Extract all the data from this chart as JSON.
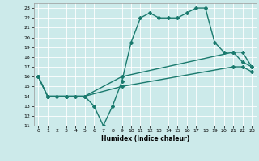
{
  "xlabel": "Humidex (Indice chaleur)",
  "xlim": [
    -0.5,
    23.5
  ],
  "ylim": [
    11,
    23.5
  ],
  "xticks": [
    0,
    1,
    2,
    3,
    4,
    5,
    6,
    7,
    8,
    9,
    10,
    11,
    12,
    13,
    14,
    15,
    16,
    17,
    18,
    19,
    20,
    21,
    22,
    23
  ],
  "yticks": [
    11,
    12,
    13,
    14,
    15,
    16,
    17,
    18,
    19,
    20,
    21,
    22,
    23
  ],
  "bg_color": "#cceaea",
  "grid_color": "#b0d8d8",
  "line_color": "#1a7a6e",
  "line1_x": [
    0,
    1,
    2,
    3,
    4,
    5,
    6,
    7,
    8,
    9,
    10,
    11,
    12,
    13,
    14,
    15,
    16,
    17,
    18,
    19,
    20,
    21,
    22,
    23
  ],
  "line1_y": [
    16,
    14,
    14,
    14,
    14,
    14,
    13,
    11,
    13,
    15.5,
    19.5,
    22,
    22.5,
    22,
    22,
    22,
    22.5,
    23,
    23,
    19.5,
    18.5,
    18.5,
    17.5,
    17
  ],
  "line2_x": [
    0,
    1,
    3,
    5,
    9,
    21,
    22,
    23
  ],
  "line2_y": [
    16,
    14,
    14,
    14,
    16,
    18.5,
    18.5,
    17
  ],
  "line3_x": [
    0,
    1,
    3,
    5,
    9,
    21,
    22,
    23
  ],
  "line3_y": [
    16,
    14,
    14,
    14,
    15,
    17,
    17,
    16.5
  ]
}
